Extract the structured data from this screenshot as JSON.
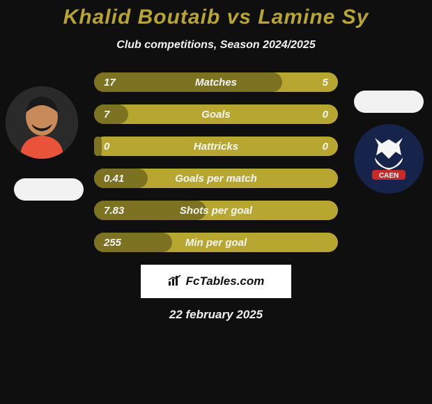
{
  "colors": {
    "bg": "#0f0f0f",
    "title": "#b8a52f",
    "subtitle": "#f2f2f2",
    "bar_bg": "#b7a731",
    "bar_fill": "#7c7221",
    "bar_text": "#f5f5f5",
    "pill": "#f2f2f2",
    "footer_badge_bg": "#ffffff",
    "footer_badge_text": "#111111",
    "footer_date": "#f2f2f2",
    "club_bg": "#16234a",
    "club_beard": "#f5f5f5",
    "club_banner": "#c82a2a",
    "avatar_skin": "#c98a5a",
    "avatar_hair": "#1a1a1a",
    "avatar_shirt": "#e8533a",
    "avatar_bg": "#2a2a2a"
  },
  "title": "Khalid Boutaib vs Lamine Sy",
  "subtitle": "Club competitions, Season 2024/2025",
  "bars": [
    {
      "label": "Matches",
      "left": "17",
      "right": "5",
      "fill_pct": 77
    },
    {
      "label": "Goals",
      "left": "7",
      "right": "0",
      "fill_pct": 14
    },
    {
      "label": "Hattricks",
      "left": "0",
      "right": "0",
      "fill_pct": 3
    },
    {
      "label": "Goals per match",
      "left": "0.41",
      "right": "",
      "fill_pct": 22
    },
    {
      "label": "Shots per goal",
      "left": "7.83",
      "right": "",
      "fill_pct": 46
    },
    {
      "label": "Min per goal",
      "left": "255",
      "right": "",
      "fill_pct": 32
    }
  ],
  "footer": {
    "site": "FcTables.com",
    "date": "22 february 2025"
  }
}
